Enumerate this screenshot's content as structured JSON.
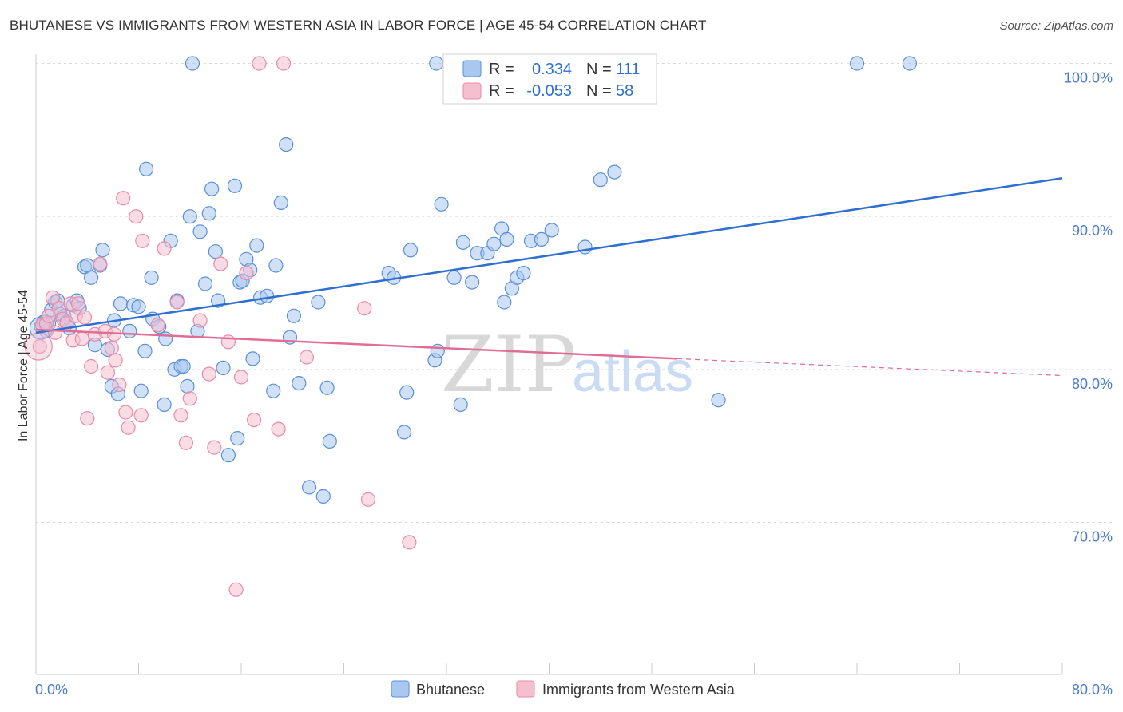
{
  "title": "BHUTANESE VS IMMIGRANTS FROM WESTERN ASIA IN LABOR FORCE | AGE 45-54 CORRELATION CHART",
  "source": "Source: ZipAtlas.com",
  "watermark": {
    "zip": "ZIP",
    "atlas": "atlas"
  },
  "colors": {
    "blue_fill": "#a9c8f0",
    "blue_stroke": "#5a8fd8",
    "blue_line": "#2f6fd0",
    "pink_fill": "#f5bfd0",
    "pink_stroke": "#e88aa8",
    "pink_line": "#e06d96",
    "grid": "#d8d8d8",
    "axis_label": "#4a7cc9"
  },
  "legend": {
    "rows": [
      {
        "r_label": "R =",
        "r_value": "0.334",
        "n_label": "N =",
        "n_value": "111"
      },
      {
        "r_label": "R =",
        "r_value": "-0.053",
        "n_label": "N =",
        "n_value": "58"
      }
    ]
  },
  "bottom_legend": [
    "Bhutanese",
    "Immigrants from Western Asia"
  ],
  "chart_data": {
    "type": "scatter",
    "title": "BHUTANESE VS IMMIGRANTS FROM WESTERN ASIA IN LABOR FORCE | AGE 45-54 CORRELATION CHART",
    "xlabel": "",
    "ylabel": "In Labor Force | Age 45-54",
    "xlim": [
      0,
      80
    ],
    "ylim": [
      61,
      101
    ],
    "x_tick_labels": [
      "0.0%",
      "80.0%"
    ],
    "y_ticks": [
      70,
      80,
      90,
      100
    ],
    "y_tick_labels": [
      "70.0%",
      "80.0%",
      "90.0%",
      "100.0%"
    ],
    "grid": true,
    "legend_position": "top-center",
    "series": [
      {
        "name": "Bhutanese",
        "R": 0.334,
        "N": 111,
        "trend": {
          "x0": 0,
          "y0": 82.4,
          "x1": 80,
          "y1": 92.5
        },
        "points": [
          [
            0.4,
            82.8
          ],
          [
            0.6,
            83.1
          ],
          [
            0.8,
            82.5
          ],
          [
            1.0,
            83.0
          ],
          [
            1.2,
            83.9
          ],
          [
            1.5,
            84.4
          ],
          [
            1.7,
            84.5
          ],
          [
            1.9,
            83.6
          ],
          [
            2.2,
            83.5
          ],
          [
            2.4,
            83.1
          ],
          [
            2.6,
            82.7
          ],
          [
            2.9,
            84.2
          ],
          [
            3.2,
            84.5
          ],
          [
            3.4,
            84.0
          ],
          [
            3.8,
            86.7
          ],
          [
            4.0,
            86.8
          ],
          [
            4.3,
            86.0
          ],
          [
            4.6,
            81.6
          ],
          [
            5.0,
            86.8
          ],
          [
            5.2,
            87.8
          ],
          [
            5.6,
            81.3
          ],
          [
            5.9,
            78.9
          ],
          [
            6.1,
            83.2
          ],
          [
            6.4,
            78.4
          ],
          [
            6.6,
            84.3
          ],
          [
            7.3,
            82.5
          ],
          [
            7.6,
            84.2
          ],
          [
            8.0,
            84.1
          ],
          [
            8.2,
            78.6
          ],
          [
            8.5,
            81.2
          ],
          [
            8.6,
            93.1
          ],
          [
            9.0,
            86.0
          ],
          [
            9.1,
            83.3
          ],
          [
            9.6,
            82.8
          ],
          [
            10.0,
            77.7
          ],
          [
            10.1,
            82.0
          ],
          [
            10.5,
            88.4
          ],
          [
            10.8,
            80.0
          ],
          [
            11.0,
            84.5
          ],
          [
            11.3,
            80.2
          ],
          [
            11.5,
            80.2
          ],
          [
            11.8,
            78.9
          ],
          [
            12.0,
            90.0
          ],
          [
            12.2,
            100.0
          ],
          [
            12.6,
            82.5
          ],
          [
            12.8,
            89.0
          ],
          [
            13.2,
            85.6
          ],
          [
            13.5,
            90.2
          ],
          [
            13.7,
            91.8
          ],
          [
            14.0,
            87.7
          ],
          [
            14.2,
            84.5
          ],
          [
            14.6,
            80.1
          ],
          [
            15.0,
            74.4
          ],
          [
            15.5,
            92.0
          ],
          [
            15.7,
            75.5
          ],
          [
            15.9,
            85.7
          ],
          [
            16.1,
            85.8
          ],
          [
            16.4,
            87.2
          ],
          [
            16.7,
            86.5
          ],
          [
            16.9,
            80.7
          ],
          [
            17.2,
            88.1
          ],
          [
            17.5,
            84.7
          ],
          [
            18.0,
            84.8
          ],
          [
            18.5,
            78.6
          ],
          [
            18.7,
            86.8
          ],
          [
            19.1,
            90.9
          ],
          [
            19.5,
            94.7
          ],
          [
            19.8,
            82.1
          ],
          [
            20.1,
            83.5
          ],
          [
            20.5,
            79.1
          ],
          [
            21.3,
            72.3
          ],
          [
            22.0,
            84.4
          ],
          [
            22.4,
            71.7
          ],
          [
            22.7,
            78.8
          ],
          [
            22.9,
            75.3
          ],
          [
            27.5,
            86.3
          ],
          [
            27.9,
            86.0
          ],
          [
            28.7,
            75.9
          ],
          [
            28.9,
            78.5
          ],
          [
            29.2,
            87.8
          ],
          [
            31.1,
            80.6
          ],
          [
            31.3,
            81.2
          ],
          [
            31.6,
            90.8
          ],
          [
            32.6,
            86.0
          ],
          [
            33.1,
            77.7
          ],
          [
            33.3,
            88.3
          ],
          [
            34.0,
            85.7
          ],
          [
            34.4,
            87.6
          ],
          [
            35.2,
            87.6
          ],
          [
            35.7,
            88.2
          ],
          [
            36.3,
            89.2
          ],
          [
            36.5,
            84.4
          ],
          [
            36.7,
            88.5
          ],
          [
            37.1,
            85.3
          ],
          [
            37.5,
            86.0
          ],
          [
            38.0,
            86.3
          ],
          [
            38.6,
            88.4
          ],
          [
            39.4,
            88.5
          ],
          [
            40.2,
            89.1
          ],
          [
            42.8,
            88.0
          ],
          [
            44.0,
            92.4
          ],
          [
            45.1,
            92.9
          ],
          [
            31.2,
            100.0
          ],
          [
            53.2,
            78.0
          ],
          [
            64.0,
            100.0
          ],
          [
            68.1,
            100.0
          ]
        ]
      },
      {
        "name": "Immigrants from Western Asia",
        "R": -0.053,
        "N": 58,
        "trend": {
          "x0": 0,
          "y0": 82.6,
          "x1": 50,
          "y1": 80.7,
          "dash_x1": 80,
          "dash_y1": 79.6
        },
        "points": [
          [
            0.3,
            81.5
          ],
          [
            0.5,
            82.9
          ],
          [
            0.8,
            83.0
          ],
          [
            1.0,
            83.5
          ],
          [
            1.3,
            84.7
          ],
          [
            1.5,
            82.4
          ],
          [
            1.8,
            84.0
          ],
          [
            2.1,
            83.3
          ],
          [
            2.4,
            83.0
          ],
          [
            2.7,
            84.3
          ],
          [
            2.9,
            81.9
          ],
          [
            3.1,
            83.5
          ],
          [
            3.3,
            84.3
          ],
          [
            3.6,
            82.0
          ],
          [
            3.8,
            83.4
          ],
          [
            4.0,
            76.8
          ],
          [
            4.3,
            80.2
          ],
          [
            4.6,
            82.3
          ],
          [
            5.0,
            86.9
          ],
          [
            5.4,
            82.5
          ],
          [
            5.6,
            79.8
          ],
          [
            5.9,
            81.4
          ],
          [
            6.1,
            82.3
          ],
          [
            6.2,
            80.6
          ],
          [
            6.5,
            79.0
          ],
          [
            6.8,
            91.2
          ],
          [
            7.0,
            77.2
          ],
          [
            7.2,
            76.2
          ],
          [
            7.8,
            90.0
          ],
          [
            8.2,
            77.0
          ],
          [
            8.3,
            88.4
          ],
          [
            9.5,
            82.9
          ],
          [
            10.0,
            87.9
          ],
          [
            11.0,
            84.4
          ],
          [
            11.3,
            77.0
          ],
          [
            11.7,
            75.2
          ],
          [
            12.0,
            78.1
          ],
          [
            12.8,
            83.2
          ],
          [
            13.5,
            79.7
          ],
          [
            13.9,
            74.9
          ],
          [
            14.4,
            86.9
          ],
          [
            15.0,
            81.8
          ],
          [
            15.6,
            65.6
          ],
          [
            16.0,
            79.5
          ],
          [
            16.4,
            86.3
          ],
          [
            17.0,
            76.7
          ],
          [
            17.4,
            100.0
          ],
          [
            18.9,
            76.1
          ],
          [
            19.3,
            100.0
          ],
          [
            21.1,
            80.8
          ],
          [
            25.6,
            84.0
          ],
          [
            25.9,
            71.5
          ],
          [
            29.1,
            68.7
          ],
          [
            32.2,
            100.0
          ]
        ]
      }
    ]
  }
}
